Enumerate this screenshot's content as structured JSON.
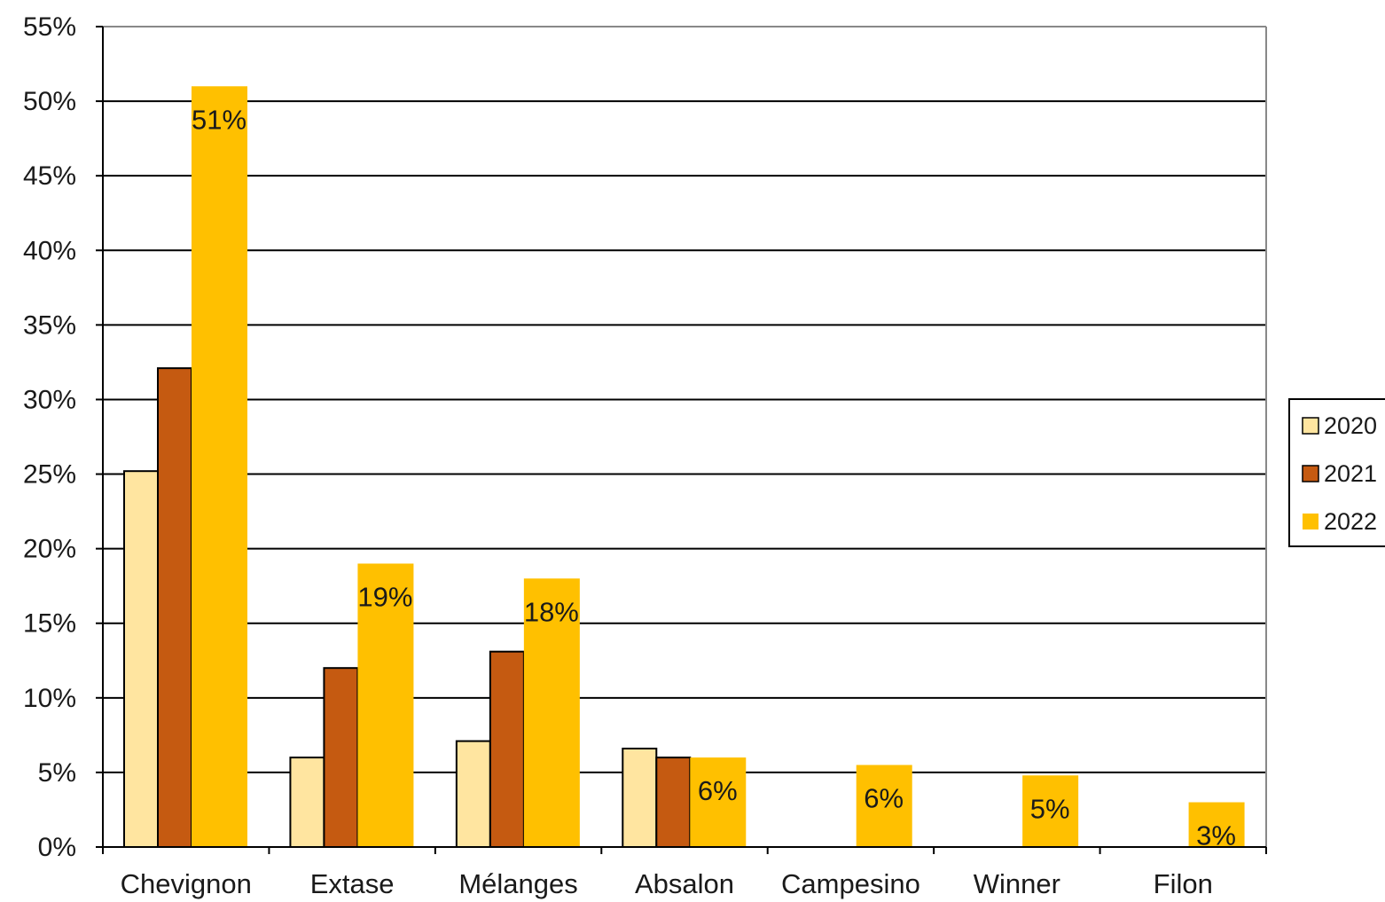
{
  "chart_data": {
    "type": "bar",
    "categories": [
      "Chevignon",
      "Extase",
      "Mélanges",
      "Absalon",
      "Campesino",
      "Winner",
      "Filon"
    ],
    "series": [
      {
        "name": "2020",
        "color": "#FFE5A0",
        "values": [
          25.2,
          6.0,
          7.1,
          6.6,
          null,
          null,
          null
        ]
      },
      {
        "name": "2021",
        "color": "#C55A11",
        "values": [
          32.1,
          12.0,
          13.1,
          6.0,
          null,
          null,
          null
        ]
      },
      {
        "name": "2022",
        "color": "#FFC000",
        "values": [
          51.0,
          19.0,
          18.0,
          6.0,
          5.5,
          4.8,
          3.0
        ],
        "data_labels": [
          "51%",
          "19%",
          "18%",
          "6%",
          "6%",
          "5%",
          "3%"
        ]
      }
    ],
    "y_ticks": [
      "0%",
      "5%",
      "10%",
      "15%",
      "20%",
      "25%",
      "30%",
      "35%",
      "40%",
      "45%",
      "50%",
      "55%"
    ],
    "ylim": [
      0,
      55
    ],
    "y_unit": "%",
    "grid": true,
    "legend_position": "right",
    "title": "",
    "xlabel": "",
    "ylabel": ""
  }
}
